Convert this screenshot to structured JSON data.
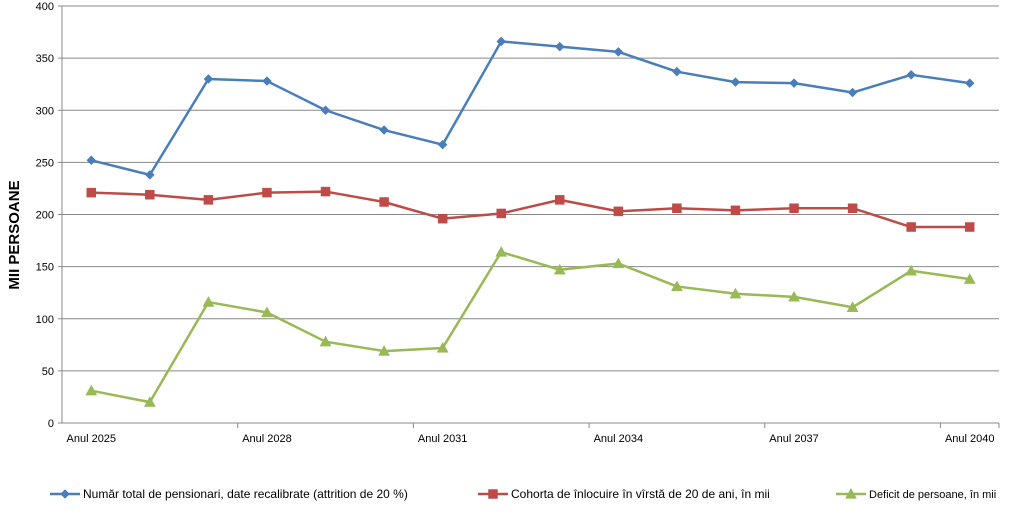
{
  "chart_data": {
    "type": "line",
    "title": "",
    "ylabel": "MII PERSOANE",
    "xlabel": "",
    "ylim": [
      0,
      400
    ],
    "yticks": [
      0,
      50,
      100,
      150,
      200,
      250,
      300,
      350,
      400
    ],
    "grid": true,
    "legend_position": "bottom",
    "categories": [
      "Anul 2025",
      "",
      "",
      "Anul 2028",
      "",
      "",
      "Anul 2031",
      "",
      "",
      "Anul 2034",
      "",
      "",
      "Anul 2037",
      "",
      "",
      "Anul 2040"
    ],
    "series": [
      {
        "name": "Număr total de pensionari, date recalibrate (attrition de 20 %)",
        "color": "#4A7EBB",
        "marker": "diamond",
        "values": [
          252,
          238,
          330,
          328,
          300,
          281,
          267,
          366,
          361,
          356,
          337,
          327,
          326,
          317,
          334,
          326
        ]
      },
      {
        "name": "Cohorta de înlocuire în vîrstă de 20 de ani, în mii",
        "color": "#BE4B48",
        "marker": "square",
        "values": [
          221,
          219,
          214,
          221,
          222,
          212,
          196,
          201,
          214,
          203,
          206,
          204,
          206,
          206,
          188,
          188
        ]
      },
      {
        "name": "Deficit de persoane, în mii",
        "color": "#98B954",
        "marker": "triangle",
        "values": [
          31,
          20,
          116,
          106,
          78,
          69,
          72,
          164,
          147,
          153,
          131,
          124,
          121,
          111,
          146,
          138
        ]
      }
    ]
  }
}
